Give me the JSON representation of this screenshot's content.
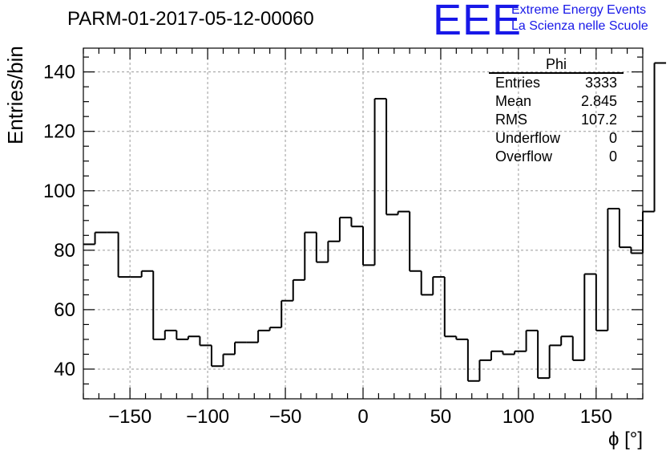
{
  "title": "PARM-01-2017-05-12-00060",
  "logo": {
    "mark": "EEE",
    "line1": "Extreme Energy Events",
    "line2": "La Scienza nelle Scuole",
    "color": "#1818e8"
  },
  "stats": {
    "name": "Phi",
    "rows": [
      {
        "label": "Entries",
        "value": "3333"
      },
      {
        "label": "Mean",
        "value": "2.845"
      },
      {
        "label": "RMS",
        "value": "107.2"
      },
      {
        "label": "Underflow",
        "value": "0"
      },
      {
        "label": "Overflow",
        "value": "0"
      }
    ]
  },
  "chart_data": {
    "type": "bar",
    "style": "step-histogram",
    "title": "PARM-01-2017-05-12-00060",
    "xlabel": "ϕ [°]",
    "ylabel": "Entries/bin",
    "xlim": [
      -180,
      180
    ],
    "ylim": [
      30,
      148
    ],
    "grid": true,
    "bin_width": 7.5,
    "x_ticks": [
      -150,
      -100,
      -50,
      0,
      50,
      100,
      150
    ],
    "x_tick_labels": [
      "−150",
      "−100",
      "−50",
      "0",
      "50",
      "100",
      "150"
    ],
    "y_ticks": [
      40,
      60,
      80,
      100,
      120,
      140
    ],
    "y_tick_labels": [
      "40",
      "60",
      "80",
      "100",
      "120",
      "140"
    ],
    "values": [
      82,
      86,
      86,
      71,
      71,
      73,
      50,
      53,
      50,
      51,
      48,
      41,
      45,
      49,
      49,
      53,
      54,
      63,
      70,
      86,
      76,
      83,
      91,
      88,
      75,
      131,
      92,
      93,
      73,
      65,
      71,
      51,
      50,
      36,
      43,
      46,
      45,
      46,
      53,
      37,
      48,
      51,
      43,
      72,
      53,
      94,
      81,
      79,
      93,
      143
    ]
  }
}
